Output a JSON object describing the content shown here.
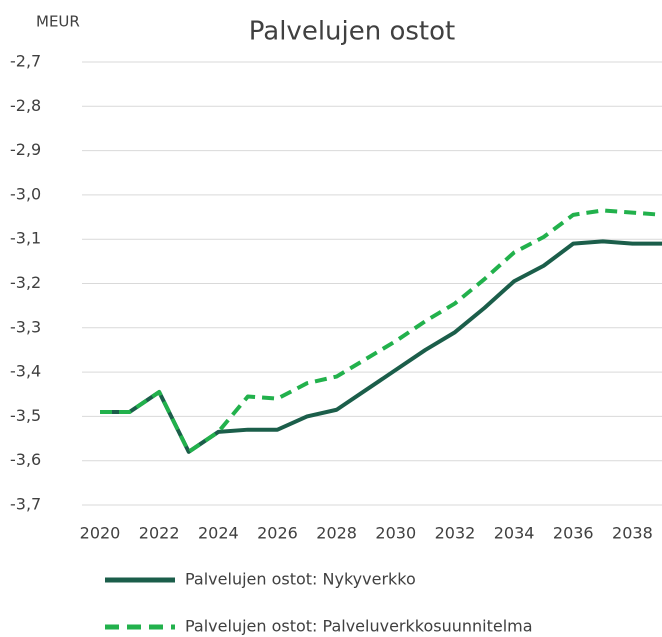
{
  "chart_data": {
    "type": "line",
    "title": "Palvelujen ostot",
    "ylabel": "MEUR",
    "x": [
      2020,
      2021,
      2022,
      2023,
      2024,
      2025,
      2026,
      2027,
      2028,
      2029,
      2030,
      2031,
      2032,
      2033,
      2034,
      2035,
      2036,
      2037,
      2038,
      2039
    ],
    "series": [
      {
        "name": "Palvelujen ostot: Nykyverkko",
        "color": "#1b5e4a",
        "dash": false,
        "values": [
          -3.49,
          -3.49,
          -3.445,
          -3.58,
          -3.535,
          -3.53,
          -3.53,
          -3.5,
          -3.485,
          -3.44,
          -3.395,
          -3.35,
          -3.31,
          -3.255,
          -3.195,
          -3.16,
          -3.11,
          -3.105,
          -3.11,
          -3.11
        ]
      },
      {
        "name": "Palvelujen ostot: Palveluverkkosuunnitelma",
        "color": "#22b14c",
        "dash": true,
        "values": [
          -3.49,
          -3.49,
          -3.445,
          -3.58,
          -3.535,
          -3.455,
          -3.46,
          -3.425,
          -3.41,
          -3.37,
          -3.33,
          -3.285,
          -3.245,
          -3.19,
          -3.13,
          -3.095,
          -3.045,
          -3.035,
          -3.04,
          -3.045
        ]
      }
    ],
    "xlim": [
      2020,
      2039
    ],
    "xticks": [
      2020,
      2022,
      2024,
      2026,
      2028,
      2030,
      2032,
      2034,
      2036,
      2038
    ],
    "ylim": [
      -3.7,
      -2.7
    ],
    "yticks": [
      {
        "value": -3.7,
        "label": "-3,7"
      },
      {
        "value": -3.6,
        "label": "-3,6"
      },
      {
        "value": -3.5,
        "label": "-3,5"
      },
      {
        "value": -3.4,
        "label": "-3,4"
      },
      {
        "value": -3.3,
        "label": "-3,3"
      },
      {
        "value": -3.2,
        "label": "-3,2"
      },
      {
        "value": -3.1,
        "label": "-3,1"
      },
      {
        "value": -3.0,
        "label": "-3,0"
      },
      {
        "value": -2.9,
        "label": "-2,9"
      },
      {
        "value": -2.8,
        "label": "-2,8"
      },
      {
        "value": -2.7,
        "label": "-2,7"
      }
    ],
    "grid": true,
    "legend": "bottom"
  }
}
